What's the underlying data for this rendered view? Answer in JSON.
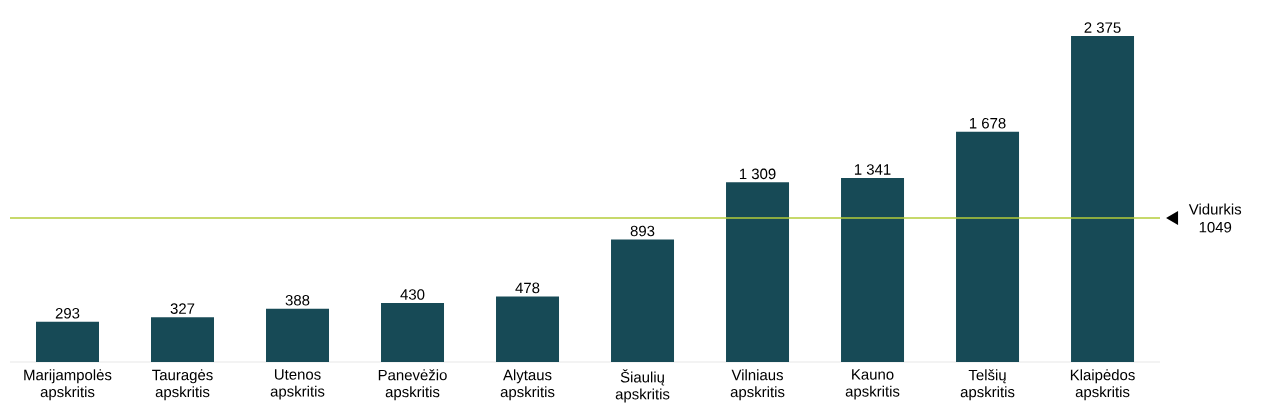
{
  "chart_data": {
    "type": "bar",
    "categories": [
      "Marijampolės apskritis",
      "Tauragės apskritis",
      "Utenos apskritis",
      "Panevėžio apskritis",
      "Alytaus apskritis",
      "Šiaulių apskritis",
      "Vilniaus apskritis",
      "Kauno apskritis",
      "Telšių apskritis",
      "Klaipėdos apskritis"
    ],
    "values": [
      293,
      327,
      388,
      430,
      478,
      893,
      1309,
      1341,
      1678,
      2375
    ],
    "value_labels": [
      "293",
      "327",
      "388",
      "430",
      "478",
      "893",
      "1 309",
      "1 341",
      "1 678",
      "2 375"
    ],
    "color": "#174a56",
    "ref_lines": [
      {
        "axis": "y",
        "value": 1049,
        "label": "Vidurkis 1049",
        "color": "#b5cc3a"
      }
    ]
  }
}
